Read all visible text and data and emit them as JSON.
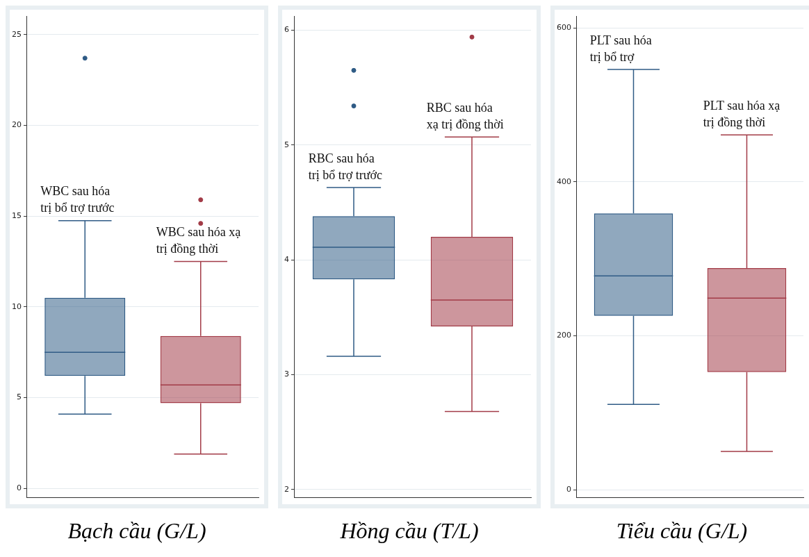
{
  "chart_data": [
    {
      "type": "box",
      "xlabel": "Bạch cầu (G/L)",
      "categories": [
        null,
        null
      ],
      "colors": [
        "#2f5b85",
        "#a23b47"
      ],
      "boxes": [
        {
          "low": 4.1,
          "q1": 6.2,
          "median": 7.5,
          "q3": 10.5,
          "high": 14.75,
          "outliers": [
            23.7
          ]
        },
        {
          "low": 1.9,
          "q1": 4.7,
          "median": 5.7,
          "q3": 8.4,
          "high": 12.5,
          "outliers": [
            15.9,
            14.6
          ]
        }
      ],
      "ylim": [
        -0.5,
        26
      ],
      "yticks": [
        0,
        5,
        10,
        15,
        20,
        25
      ],
      "grid": "y",
      "tick_labels": "y",
      "marker": "circle",
      "annotations": [
        "WBC sau hóa\ntrị bổ trợ trước",
        "WBC sau hóa xạ\ntrị đồng thời"
      ]
    },
    {
      "type": "box",
      "xlabel": "Hồng cầu (T/L)",
      "categories": [
        null,
        null
      ],
      "colors": [
        "#2f5b85",
        "#a23b47"
      ],
      "boxes": [
        {
          "low": 3.16,
          "q1": 3.83,
          "median": 4.11,
          "q3": 4.38,
          "high": 4.63,
          "outliers": [
            5.65,
            5.34
          ]
        },
        {
          "low": 2.68,
          "q1": 3.42,
          "median": 3.65,
          "q3": 4.2,
          "high": 5.07,
          "outliers": [
            5.94
          ]
        }
      ],
      "ylim": [
        1.93,
        6.12
      ],
      "yticks": [
        2,
        3,
        4,
        5,
        6
      ],
      "grid": "y",
      "tick_labels": "y",
      "marker": "circle",
      "annotations": [
        "RBC sau hóa\ntrị bổ trợ trước",
        "RBC sau hóa\nxạ trị đồng thời"
      ]
    },
    {
      "type": "box",
      "xlabel": "Tiểu cầu (G/L)",
      "categories": [
        null,
        null
      ],
      "colors": [
        "#2f5b85",
        "#a23b47"
      ],
      "boxes": [
        {
          "low": 111,
          "q1": 226,
          "median": 278,
          "q3": 359,
          "high": 546
        },
        {
          "low": 50,
          "q1": 153,
          "median": 249,
          "q3": 288,
          "high": 461
        }
      ],
      "ylim": [
        -10,
        615
      ],
      "yticks": [
        0,
        200,
        400,
        600
      ],
      "grid": "y",
      "tick_labels": "y",
      "marker": "circle",
      "annotations": [
        "PLT sau hóa\ntrị bổ trợ",
        "PLT sau hóa xạ\ntrị đồng thời"
      ]
    }
  ]
}
